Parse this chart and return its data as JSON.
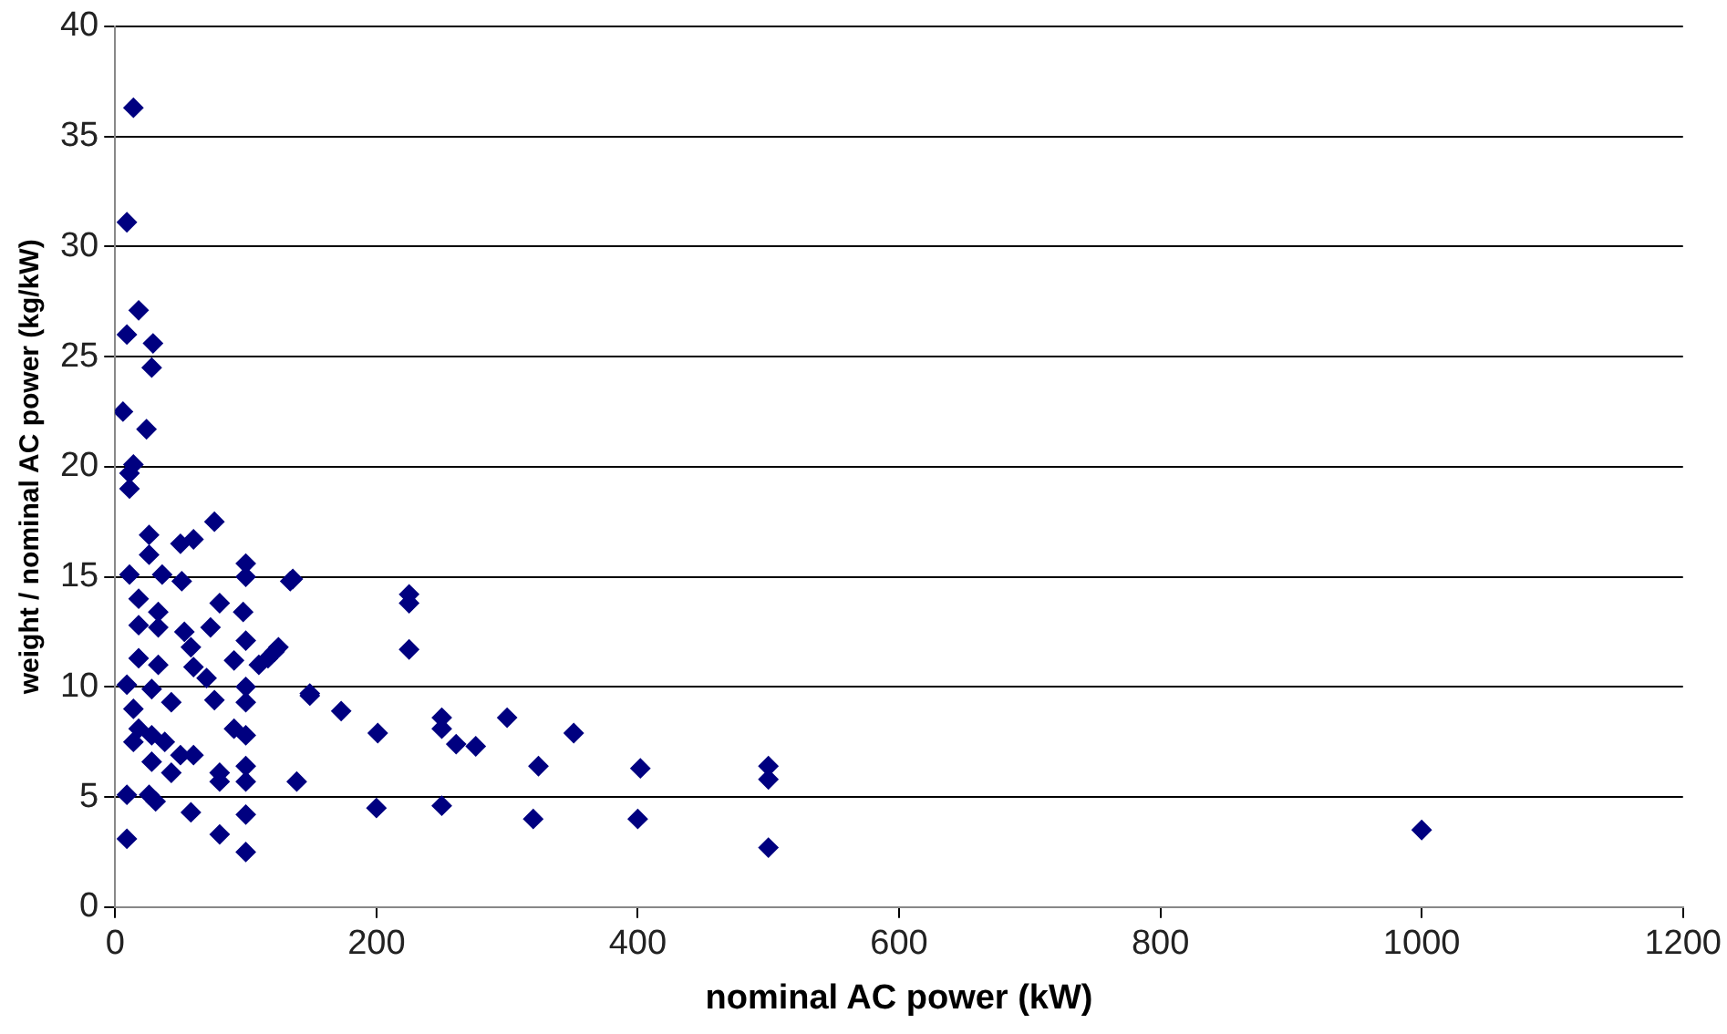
{
  "chart_data": {
    "type": "scatter",
    "xlabel": "nominal AC power (kW)",
    "ylabel": "weight / nominal AC power (kg/kW)",
    "x": [
      14,
      9,
      18,
      9,
      29,
      28,
      6,
      24,
      14,
      11,
      11,
      26,
      26,
      50,
      60,
      76,
      11,
      36,
      51,
      100,
      100,
      136,
      18,
      33,
      80,
      98,
      18,
      33,
      53,
      73,
      58,
      100,
      125,
      18,
      33,
      60,
      91,
      110,
      70,
      9,
      28,
      43,
      100,
      100,
      149,
      14,
      76,
      18,
      28,
      38,
      50,
      60,
      91,
      100,
      14,
      28,
      43,
      80,
      100,
      80,
      100,
      9,
      26,
      31,
      58,
      100,
      80,
      100,
      9,
      134,
      225,
      225,
      122,
      117,
      225,
      149,
      173,
      201,
      250,
      250,
      261,
      276,
      300,
      351,
      324,
      402,
      500,
      500,
      139,
      200,
      250,
      320,
      400,
      500,
      1000
    ],
    "values": [
      36.3,
      31.1,
      27.1,
      26.0,
      25.6,
      24.5,
      22.5,
      21.7,
      20.1,
      19.7,
      19.0,
      16.9,
      16.0,
      16.5,
      16.7,
      17.5,
      15.1,
      15.1,
      14.8,
      15.6,
      15.0,
      14.9,
      14.0,
      13.4,
      13.8,
      13.4,
      12.8,
      12.7,
      12.5,
      12.7,
      11.8,
      12.1,
      11.8,
      11.3,
      11.0,
      10.9,
      11.2,
      11.0,
      10.4,
      10.1,
      9.9,
      9.3,
      10.0,
      9.3,
      9.7,
      9.0,
      9.4,
      8.1,
      7.8,
      7.5,
      6.9,
      6.9,
      8.1,
      7.8,
      7.5,
      6.6,
      6.1,
      6.1,
      6.4,
      5.7,
      5.7,
      5.1,
      5.1,
      4.8,
      4.3,
      4.2,
      3.3,
      2.5,
      3.1,
      14.8,
      14.2,
      13.8,
      11.6,
      11.3,
      11.7,
      9.6,
      8.9,
      7.9,
      8.6,
      8.1,
      7.4,
      7.3,
      8.6,
      7.9,
      6.4,
      6.3,
      6.4,
      5.8,
      5.7,
      4.5,
      4.6,
      4.0,
      4.0,
      2.7,
      3.5
    ],
    "color": "#000080",
    "marker": "diamond",
    "xlim": [
      0,
      1200
    ],
    "xticks": [
      0,
      200,
      400,
      600,
      800,
      1000,
      1200
    ],
    "ylim": [
      0,
      40
    ],
    "yticks": [
      0,
      5,
      10,
      15,
      20,
      25,
      30,
      35,
      40
    ],
    "grid": "y",
    "legend": false
  }
}
